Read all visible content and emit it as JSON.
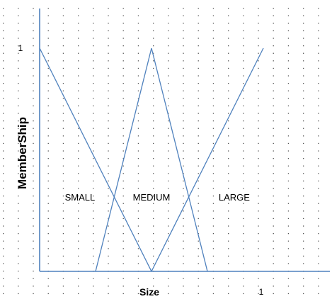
{
  "chart_data": {
    "type": "line",
    "title": "",
    "xlabel": "Size",
    "ylabel": "MemberShip",
    "xlim": [
      0,
      1
    ],
    "ylim": [
      0,
      1
    ],
    "x_tick_labels": [
      {
        "value": 1,
        "label": "1"
      }
    ],
    "y_tick_labels": [
      {
        "value": 1,
        "label": "1"
      }
    ],
    "grid": "dotted",
    "series": [
      {
        "x": [
          0,
          0.5
        ],
        "y": [
          1,
          0
        ]
      },
      {
        "x": [
          0.25,
          0.5,
          0.75
        ],
        "y": [
          0,
          1,
          0
        ]
      },
      {
        "x": [
          0.5,
          1
        ],
        "y": [
          0,
          1
        ]
      }
    ],
    "region_labels": [
      {
        "text": "SMALL",
        "x": 0.18,
        "y": 0.33
      },
      {
        "text": "MEDIUM",
        "x": 0.5,
        "y": 0.33
      },
      {
        "text": "LARGE",
        "x": 0.87,
        "y": 0.33
      }
    ],
    "colors": {
      "line": "#4f81bd",
      "grid": "#555555"
    }
  }
}
